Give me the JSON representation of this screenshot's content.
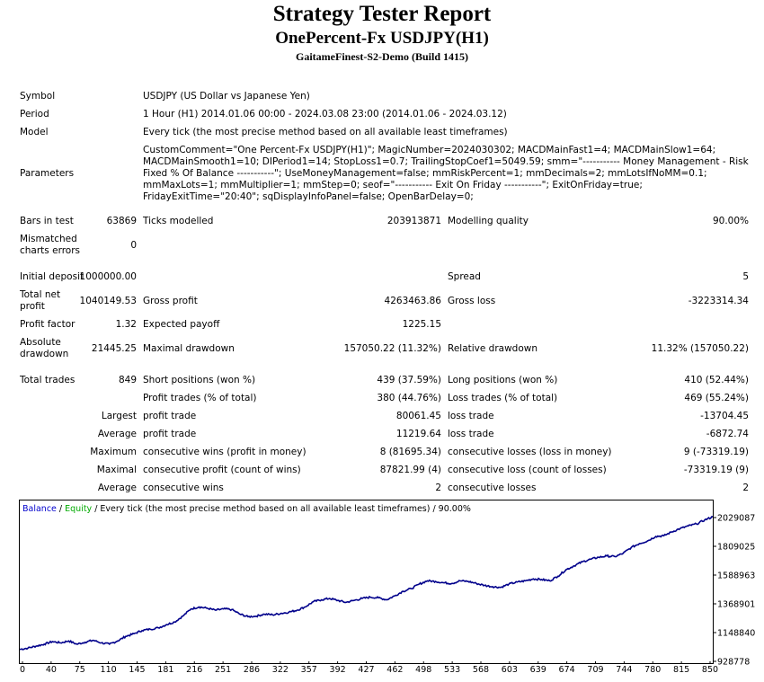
{
  "header": {
    "title": "Strategy Tester Report",
    "subtitle": "OnePercent-Fx USDJPY(H1)",
    "server": "GaitameFinest-S2-Demo (Build 1415)"
  },
  "info": {
    "symbol_label": "Symbol",
    "symbol_value": "USDJPY (US Dollar vs Japanese Yen)",
    "period_label": "Period",
    "period_value": "1 Hour (H1) 2014.01.06 00:00 - 2024.03.08 23:00 (2014.01.06 - 2024.03.12)",
    "model_label": "Model",
    "model_value": "Every tick (the most precise method based on all available least timeframes)",
    "parameters_label": "Parameters",
    "parameters_value": "CustomComment=\"One Percent-Fx USDJPY(H1)\"; MagicNumber=2024030302; MACDMainFast1=4; MACDMainSlow1=64; MACDMainSmooth1=10; DIPeriod1=14; StopLoss1=0.7; TrailingStopCoef1=5049.59; smm=\"----------- Money Management - Risk Fixed % Of Balance -----------\"; UseMoneyManagement=false; mmRiskPercent=1; mmDecimals=2; mmLotsIfNoMM=0.1; mmMaxLots=1; mmMultiplier=1; mmStep=0; seof=\"----------- Exit On Friday -----------\"; ExitOnFriday=true; FridayExitTime=\"20:40\"; sqDisplayInfoPanel=false; OpenBarDelay=0;"
  },
  "stats": {
    "bars_label": "Bars in test",
    "bars_value": "63869",
    "ticks_label": "Ticks modelled",
    "ticks_value": "203913871",
    "quality_label": "Modelling quality",
    "quality_value": "90.00%",
    "mismatch_label": "Mismatched charts errors",
    "mismatch_value": "0",
    "deposit_label": "Initial deposit",
    "deposit_value": "1000000.00",
    "spread_label": "Spread",
    "spread_value": "5",
    "netprofit_label": "Total net profit",
    "netprofit_value": "1040149.53",
    "grossprofit_label": "Gross profit",
    "grossprofit_value": "4263463.86",
    "grossloss_label": "Gross loss",
    "grossloss_value": "-3223314.34",
    "pf_label": "Profit factor",
    "pf_value": "1.32",
    "payoff_label": "Expected payoff",
    "payoff_value": "1225.15",
    "absdd_label": "Absolute drawdown",
    "absdd_value": "21445.25",
    "maxdd_label": "Maximal drawdown",
    "maxdd_value": "157050.22 (11.32%)",
    "reldd_label": "Relative drawdown",
    "reldd_value": "11.32% (157050.22)",
    "trades_label": "Total trades",
    "trades_value": "849",
    "short_label": "Short positions (won %)",
    "short_value": "439 (37.59%)",
    "long_label": "Long positions (won %)",
    "long_value": "410 (52.44%)",
    "ptrades_label": "Profit trades (% of total)",
    "ptrades_value": "380 (44.76%)",
    "ltrades_label": "Loss trades (% of total)",
    "ltrades_value": "469 (55.24%)",
    "largest_label": "Largest",
    "lp_label": "profit trade",
    "lp_value": "80061.45",
    "ll_label": "loss trade",
    "ll_value": "-13704.45",
    "average_label": "Average",
    "ap_label": "profit trade",
    "ap_value": "11219.64",
    "al_label": "loss trade",
    "al_value": "-6872.74",
    "maximum_label": "Maximum",
    "mcw_label": "consecutive wins (profit in money)",
    "mcw_value": "8 (81695.34)",
    "mcl_label": "consecutive losses (loss in money)",
    "mcl_value": "9 (-73319.19)",
    "maximal_label": "Maximal",
    "mcp_label": "consecutive profit (count of wins)",
    "mcp_value": "87821.99 (4)",
    "mclc_label": "consecutive loss (count of losses)",
    "mclc_value": "-73319.19 (9)",
    "average2_label": "Average",
    "acw_label": "consecutive wins",
    "acw_value": "2",
    "acl_label": "consecutive losses",
    "acl_value": "2"
  },
  "chart_data": {
    "type": "line",
    "legend_balance": "Balance",
    "legend_sep": " / ",
    "legend_equity": "Equity",
    "legend_rest": " / Every tick (the most precise method based on all available least timeframes) / 90.00%",
    "colors": {
      "balance": "#00008b",
      "equity": "#00aa00",
      "legend_balance": "#0000cc"
    },
    "x_ticks": [
      "0",
      "40",
      "75",
      "110",
      "145",
      "181",
      "216",
      "251",
      "286",
      "322",
      "357",
      "392",
      "427",
      "462",
      "498",
      "533",
      "568",
      "603",
      "639",
      "674",
      "709",
      "744",
      "780",
      "815",
      "850"
    ],
    "y_ticks": [
      "2029087",
      "1809025",
      "1588963",
      "1368901",
      "1148840",
      "928778"
    ],
    "ylim": [
      928778,
      2029087
    ],
    "xlim": [
      0,
      850
    ],
    "series": [
      {
        "name": "Balance",
        "x": [
          0,
          10,
          20,
          30,
          40,
          50,
          60,
          70,
          80,
          90,
          100,
          110,
          120,
          130,
          140,
          150,
          160,
          170,
          180,
          190,
          200,
          210,
          220,
          230,
          240,
          250,
          260,
          270,
          280,
          290,
          300,
          310,
          320,
          330,
          340,
          350,
          360,
          370,
          380,
          390,
          400,
          410,
          420,
          430,
          440,
          450,
          460,
          470,
          480,
          490,
          500,
          510,
          520,
          530,
          540,
          550,
          560,
          570,
          580,
          590,
          600,
          610,
          620,
          630,
          640,
          650,
          660,
          670,
          680,
          690,
          700,
          710,
          720,
          730,
          740,
          750,
          760,
          770,
          780,
          790,
          800,
          810,
          820,
          830,
          840,
          850
        ],
        "values": [
          1020000,
          1030000,
          1045000,
          1060000,
          1080000,
          1070000,
          1085000,
          1060000,
          1075000,
          1090000,
          1070000,
          1060000,
          1085000,
          1120000,
          1140000,
          1165000,
          1175000,
          1185000,
          1210000,
          1230000,
          1275000,
          1330000,
          1345000,
          1335000,
          1320000,
          1330000,
          1325000,
          1290000,
          1270000,
          1275000,
          1290000,
          1285000,
          1295000,
          1305000,
          1320000,
          1345000,
          1385000,
          1400000,
          1410000,
          1395000,
          1380000,
          1395000,
          1410000,
          1420000,
          1415000,
          1400000,
          1430000,
          1465000,
          1485000,
          1520000,
          1545000,
          1540000,
          1530000,
          1525000,
          1545000,
          1540000,
          1525000,
          1510000,
          1500000,
          1495000,
          1520000,
          1535000,
          1545000,
          1560000,
          1555000,
          1545000,
          1580000,
          1630000,
          1660000,
          1690000,
          1710000,
          1725000,
          1735000,
          1730000,
          1755000,
          1800000,
          1830000,
          1850000,
          1885000,
          1890000,
          1920000,
          1945000,
          1965000,
          1980000,
          2010000,
          2035000
        ]
      }
    ]
  }
}
